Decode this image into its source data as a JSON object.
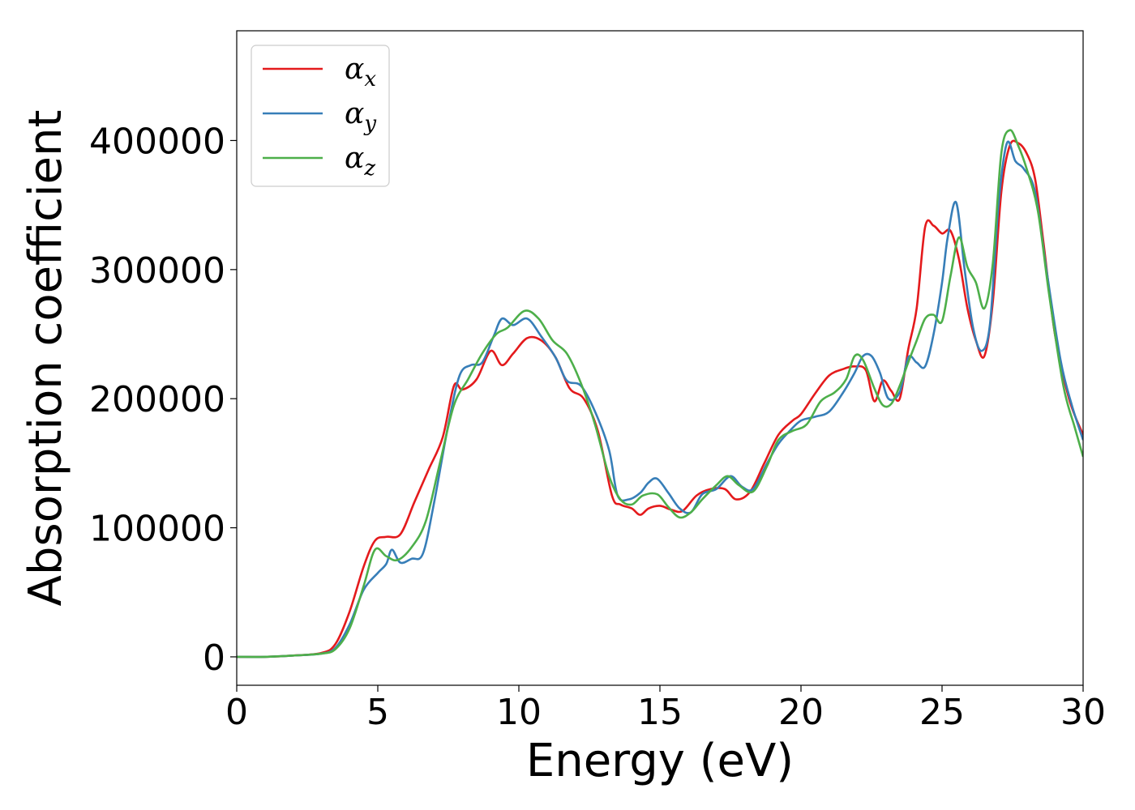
{
  "chart_data": {
    "type": "line",
    "title": "",
    "xlabel": "Energy (eV)",
    "ylabel": "Absorption coefficient",
    "xlim": [
      0,
      30
    ],
    "ylim": [
      -22000,
      485000
    ],
    "xticks": [
      0,
      5,
      10,
      15,
      20,
      25,
      30
    ],
    "xtick_labels": [
      "0",
      "5",
      "10",
      "15",
      "20",
      "25",
      "30"
    ],
    "yticks": [
      0,
      100000,
      200000,
      300000,
      400000
    ],
    "ytick_labels": [
      "0",
      "100000",
      "200000",
      "300000",
      "400000"
    ],
    "grid": false,
    "legend_position": "top-left",
    "series": [
      {
        "name": "α_x",
        "label_main": "α",
        "label_sub": "x",
        "color": "#e41a1c",
        "x": [
          0,
          1,
          2,
          3,
          3.5,
          4,
          4.5,
          4.9,
          5.3,
          5.8,
          6.3,
          6.8,
          7.3,
          7.7,
          8.0,
          8.5,
          9.0,
          9.4,
          9.8,
          10.3,
          10.8,
          11.3,
          11.8,
          12.3,
          12.8,
          13.3,
          13.6,
          14.0,
          14.3,
          14.6,
          15.0,
          15.4,
          15.8,
          16.3,
          16.8,
          17.3,
          17.7,
          18.2,
          18.7,
          19.2,
          19.7,
          20.0,
          20.5,
          21.0,
          21.5,
          21.9,
          22.3,
          22.6,
          22.9,
          23.2,
          23.5,
          23.8,
          24.1,
          24.4,
          24.7,
          25.0,
          25.3,
          25.6,
          25.9,
          26.2,
          26.5,
          26.8,
          27.1,
          27.4,
          27.7,
          28.0,
          28.3,
          28.6,
          29.0,
          29.5,
          30.0
        ],
        "y": [
          0,
          0,
          1000,
          3000,
          10000,
          35000,
          70000,
          90000,
          93000,
          95000,
          120000,
          145000,
          170000,
          210000,
          207000,
          215000,
          237000,
          226000,
          235000,
          247000,
          245000,
          232000,
          208000,
          200000,
          175000,
          125000,
          118000,
          115000,
          110000,
          115000,
          117000,
          114000,
          113000,
          125000,
          130000,
          130000,
          122000,
          128000,
          150000,
          172000,
          183000,
          188000,
          204000,
          218000,
          223000,
          225000,
          222000,
          198000,
          214000,
          206000,
          200000,
          238000,
          270000,
          333000,
          334000,
          328000,
          330000,
          308000,
          270000,
          245000,
          233000,
          275000,
          360000,
          396000,
          398000,
          390000,
          370000,
          320000,
          250000,
          200000,
          172000
        ]
      },
      {
        "name": "α_y",
        "label_main": "α",
        "label_sub": "y",
        "color": "#377eb8",
        "x": [
          0,
          1,
          2,
          3,
          3.5,
          4,
          4.5,
          5.0,
          5.3,
          5.5,
          5.8,
          6.2,
          6.6,
          7.0,
          7.5,
          7.9,
          8.3,
          8.7,
          9.1,
          9.4,
          9.8,
          10.3,
          10.8,
          11.3,
          11.7,
          12.2,
          12.7,
          13.2,
          13.5,
          13.9,
          14.3,
          14.6,
          14.9,
          15.3,
          15.7,
          16.1,
          16.5,
          17.0,
          17.5,
          17.9,
          18.3,
          18.8,
          19.2,
          19.6,
          20.0,
          20.5,
          21.0,
          21.5,
          21.9,
          22.2,
          22.5,
          22.8,
          23.1,
          23.5,
          23.8,
          24.1,
          24.4,
          24.7,
          25.0,
          25.2,
          25.5,
          25.8,
          26.1,
          26.4,
          26.7,
          27.0,
          27.3,
          27.6,
          27.9,
          28.3,
          28.7,
          29.2,
          29.6,
          30.0
        ],
        "y": [
          0,
          0,
          1000,
          2500,
          7000,
          25000,
          52000,
          65000,
          72000,
          83000,
          73000,
          76000,
          80000,
          120000,
          180000,
          218000,
          226000,
          228000,
          248000,
          262000,
          257000,
          262000,
          248000,
          232000,
          214000,
          210000,
          190000,
          160000,
          125000,
          122000,
          127000,
          135000,
          138000,
          127000,
          115000,
          112000,
          126000,
          130000,
          140000,
          132000,
          130000,
          150000,
          165000,
          175000,
          183000,
          186000,
          190000,
          205000,
          220000,
          233000,
          233000,
          220000,
          200000,
          205000,
          232000,
          228000,
          225000,
          250000,
          290000,
          325000,
          352000,
          300000,
          255000,
          237000,
          258000,
          350000,
          398000,
          384000,
          378000,
          360000,
          300000,
          230000,
          195000,
          168000
        ]
      },
      {
        "name": "α_z",
        "label_main": "α",
        "label_sub": "z",
        "color": "#4daf4a",
        "x": [
          0,
          1,
          2,
          3,
          3.5,
          4,
          4.5,
          4.9,
          5.3,
          5.7,
          6.2,
          6.7,
          7.2,
          7.7,
          8.2,
          8.7,
          9.2,
          9.6,
          10.2,
          10.7,
          11.2,
          11.7,
          12.2,
          12.7,
          13.2,
          13.6,
          14.0,
          14.4,
          14.9,
          15.3,
          15.7,
          16.1,
          16.5,
          17.0,
          17.4,
          17.8,
          18.3,
          18.8,
          19.2,
          19.7,
          20.2,
          20.7,
          21.2,
          21.6,
          21.9,
          22.2,
          22.6,
          22.9,
          23.2,
          23.5,
          23.8,
          24.1,
          24.4,
          24.7,
          25.0,
          25.3,
          25.6,
          25.9,
          26.2,
          26.5,
          26.8,
          27.1,
          27.4,
          27.7,
          28.0,
          28.4,
          28.8,
          29.3,
          29.7,
          30.0
        ],
        "y": [
          0,
          0,
          1000,
          2500,
          6000,
          22000,
          55000,
          83000,
          78000,
          75000,
          85000,
          105000,
          150000,
          195000,
          215000,
          235000,
          250000,
          255000,
          268000,
          262000,
          245000,
          235000,
          212000,
          180000,
          140000,
          122000,
          118000,
          125000,
          126000,
          116000,
          108000,
          112000,
          122000,
          133000,
          140000,
          133000,
          128000,
          148000,
          168000,
          175000,
          180000,
          198000,
          205000,
          215000,
          233000,
          230000,
          208000,
          195000,
          196000,
          210000,
          228000,
          245000,
          262000,
          265000,
          260000,
          295000,
          325000,
          302000,
          290000,
          270000,
          305000,
          390000,
          408000,
          396000,
          378000,
          345000,
          280000,
          210000,
          178000,
          155000
        ]
      }
    ]
  }
}
